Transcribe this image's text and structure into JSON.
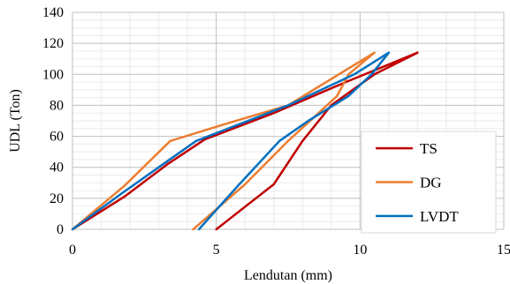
{
  "chart_data": {
    "type": "line",
    "title": "",
    "xlabel": "Lendutan (mm)",
    "ylabel": "UDL  (Ton)",
    "xlim": [
      0,
      15
    ],
    "ylim": [
      0,
      140
    ],
    "xticks": [
      0,
      5,
      10,
      15
    ],
    "yticks": [
      0,
      20,
      40,
      60,
      80,
      100,
      120,
      140
    ],
    "xtick_labels": [
      "0",
      "5",
      "10",
      "15"
    ],
    "ytick_labels": [
      "0",
      "20",
      "40",
      "60",
      "80",
      "100",
      "120",
      "140"
    ],
    "grid": {
      "major": true,
      "minor": true
    },
    "legend": {
      "position": "bottom-right"
    },
    "series": [
      {
        "name": "TS",
        "color": "#C00000",
        "points": [
          [
            0,
            0
          ],
          [
            1.8,
            21
          ],
          [
            3.3,
            42
          ],
          [
            4.6,
            58
          ],
          [
            7,
            75
          ],
          [
            9.5,
            95
          ],
          [
            12,
            114
          ],
          [
            10.5,
            100
          ],
          [
            9,
            80
          ],
          [
            8,
            57
          ],
          [
            7,
            29
          ],
          [
            5,
            0
          ]
        ]
      },
      {
        "name": "DG",
        "color": "#ED7D31",
        "points": [
          [
            0,
            0
          ],
          [
            1.8,
            28
          ],
          [
            3.4,
            57
          ],
          [
            5.5,
            69
          ],
          [
            7.5,
            80
          ],
          [
            10.5,
            114
          ],
          [
            9.6,
            100
          ],
          [
            9.2,
            86
          ],
          [
            7.5,
            57
          ],
          [
            6,
            29
          ],
          [
            4.2,
            0
          ]
        ]
      },
      {
        "name": "LVDT",
        "color": "#0070C0",
        "points": [
          [
            0,
            0
          ],
          [
            1.7,
            23
          ],
          [
            3.3,
            44
          ],
          [
            4.3,
            57
          ],
          [
            7.5,
            80
          ],
          [
            9.8,
            100
          ],
          [
            11,
            114
          ],
          [
            10.4,
            100
          ],
          [
            9.6,
            86
          ],
          [
            8.2,
            70
          ],
          [
            7.2,
            57
          ],
          [
            5.8,
            29
          ],
          [
            4.4,
            0
          ]
        ]
      }
    ]
  }
}
